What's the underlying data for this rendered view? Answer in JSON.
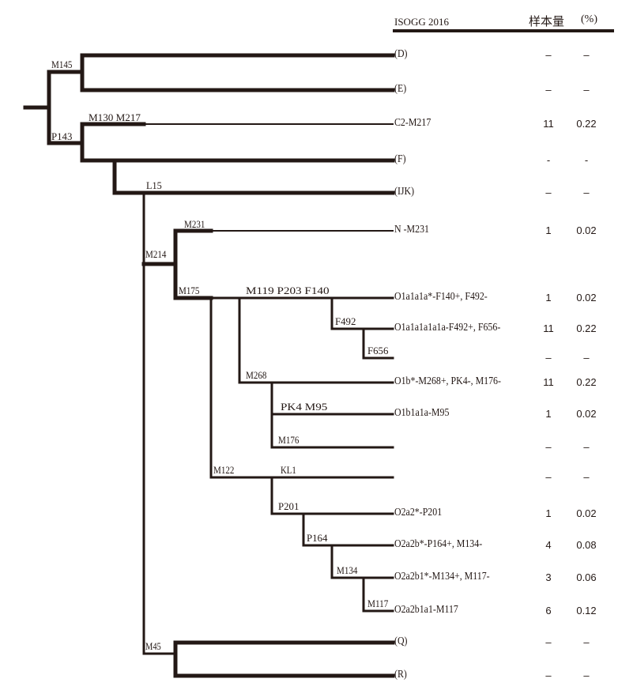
{
  "header": {
    "clade_column": "ISOGG 2016",
    "count_column": "样本量",
    "percent_column": "(%)"
  },
  "colors": {
    "ink": "#231815",
    "background": "#ffffff"
  },
  "snp_labels": {
    "M145": "M145",
    "P143": "P143",
    "M130_M217": "M130  M217",
    "L15": "L15",
    "M231": "M231",
    "M214": "M214",
    "M175": "M175",
    "M119_P203_F140": "M119  P203  F140",
    "F492": "F492",
    "F656": "F656",
    "M268": "M268",
    "PK4_M95": "PK4   M95",
    "M176": "M176",
    "M122": "M122",
    "KL1": "KL1",
    "P201": "P201",
    "P164": "P164",
    "M134": "M134",
    "M117": "M117",
    "M45": "M45"
  },
  "rows": [
    {
      "clade": "(D)",
      "count": "–",
      "percent": "–"
    },
    {
      "clade": "(E)",
      "count": "–",
      "percent": "–"
    },
    {
      "clade": "C2-M217",
      "count": "11",
      "percent": "0.22"
    },
    {
      "clade": "(F)",
      "count": "-",
      "percent": "-"
    },
    {
      "clade": "(IJK)",
      "count": "–",
      "percent": "–"
    },
    {
      "clade": "N -M231",
      "count": "1",
      "percent": "0.02"
    },
    {
      "clade": "O1a1a1a*-F140+, F492-",
      "count": "1",
      "percent": "0.02"
    },
    {
      "clade": "O1a1a1a1a1a-F492+, F656-",
      "count": "11",
      "percent": "0.22"
    },
    {
      "clade": "",
      "count": "–",
      "percent": "–"
    },
    {
      "clade": "O1b*-M268+, PK4-, M176-",
      "count": "11",
      "percent": "0.22"
    },
    {
      "clade": "O1b1a1a-M95",
      "count": "1",
      "percent": "0.02"
    },
    {
      "clade": "",
      "count": "–",
      "percent": "–"
    },
    {
      "clade": "",
      "count": "–",
      "percent": "–"
    },
    {
      "clade": "O2a2*-P201",
      "count": "1",
      "percent": "0.02"
    },
    {
      "clade": "O2a2b*-P164+, M134-",
      "count": "4",
      "percent": "0.08"
    },
    {
      "clade": "O2a2b1*-M134+, M117-",
      "count": "3",
      "percent": "0.06"
    },
    {
      "clade": "O2a2b1a1-M117",
      "count": "6",
      "percent": "0.12"
    },
    {
      "clade": "(Q)",
      "count": "–",
      "percent": "–"
    },
    {
      "clade": "(R)",
      "count": "–",
      "percent": "–"
    }
  ]
}
